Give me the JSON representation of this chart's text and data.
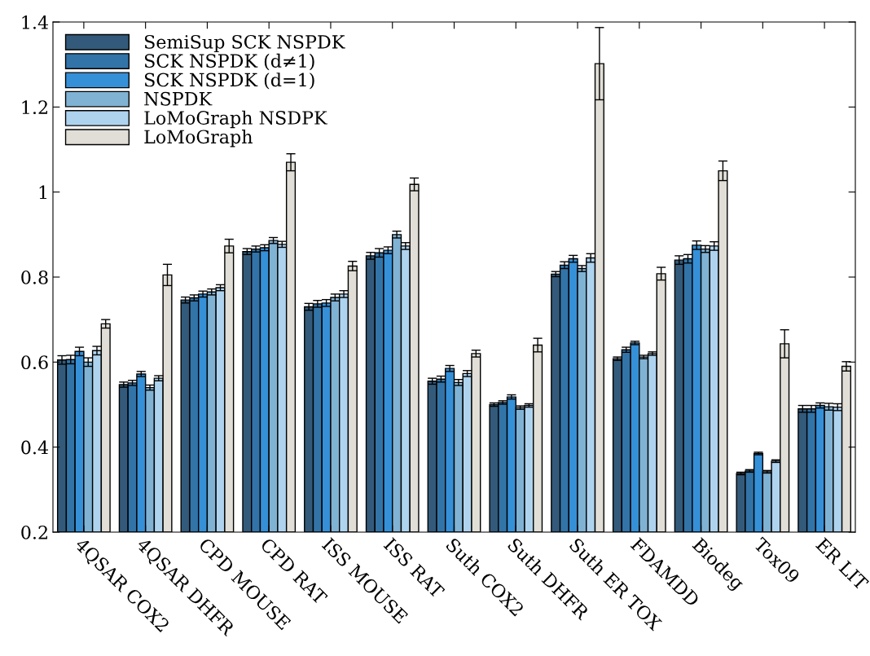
{
  "chart_data": {
    "type": "bar",
    "categories": [
      "4QSAR COX2",
      "4QSAR DHFR",
      "CPD MOUSE",
      "CPD RAT",
      "ISS MOUSE",
      "ISS RAT",
      "Suth COX2",
      "Suth DHFR",
      "Suth ER TOX",
      "FDAMDD",
      "Biodeg",
      "Tox09",
      "ER LIT"
    ],
    "series": [
      {
        "name": "SemiSup SCK NSPDK",
        "color": "#335a7a",
        "values": [
          0.605,
          0.547,
          0.746,
          0.86,
          0.73,
          0.85,
          0.555,
          0.5,
          0.807,
          0.608,
          0.84,
          0.338,
          0.49
        ],
        "errors": [
          0.01,
          0.006,
          0.007,
          0.007,
          0.008,
          0.008,
          0.007,
          0.004,
          0.006,
          0.004,
          0.01,
          0.003,
          0.008
        ]
      },
      {
        "name": "SCK NSPDK (d≠1)",
        "color": "#3274a8",
        "values": [
          0.606,
          0.551,
          0.751,
          0.866,
          0.737,
          0.857,
          0.56,
          0.505,
          0.828,
          0.629,
          0.843,
          0.344,
          0.49
        ],
        "errors": [
          0.01,
          0.006,
          0.007,
          0.007,
          0.008,
          0.01,
          0.007,
          0.004,
          0.008,
          0.006,
          0.01,
          0.003,
          0.008
        ]
      },
      {
        "name": "SCK NSPDK (d=1)",
        "color": "#3590d8",
        "values": [
          0.625,
          0.572,
          0.76,
          0.869,
          0.739,
          0.863,
          0.585,
          0.518,
          0.843,
          0.645,
          0.875,
          0.385,
          0.498
        ],
        "errors": [
          0.01,
          0.006,
          0.007,
          0.007,
          0.008,
          0.008,
          0.007,
          0.005,
          0.008,
          0.004,
          0.01,
          0.003,
          0.006
        ]
      },
      {
        "name": "NSPDK",
        "color": "#80b2d4",
        "values": [
          0.6,
          0.54,
          0.765,
          0.886,
          0.752,
          0.9,
          0.552,
          0.493,
          0.82,
          0.612,
          0.866,
          0.342,
          0.495
        ],
        "errors": [
          0.01,
          0.006,
          0.007,
          0.007,
          0.008,
          0.008,
          0.007,
          0.004,
          0.007,
          0.004,
          0.008,
          0.003,
          0.008
        ]
      },
      {
        "name": "LoMoGraph NSDPK",
        "color": "#aed3ef",
        "values": [
          0.627,
          0.562,
          0.775,
          0.877,
          0.76,
          0.873,
          0.573,
          0.498,
          0.845,
          0.62,
          0.873,
          0.367,
          0.494
        ],
        "errors": [
          0.01,
          0.006,
          0.007,
          0.007,
          0.008,
          0.008,
          0.007,
          0.004,
          0.01,
          0.004,
          0.01,
          0.003,
          0.008
        ]
      },
      {
        "name": "LoMoGraph",
        "color": "#e0ded6",
        "values": [
          0.69,
          0.805,
          0.873,
          1.07,
          0.826,
          1.018,
          0.62,
          0.64,
          1.302,
          0.808,
          1.05,
          0.643,
          0.59
        ],
        "errors": [
          0.01,
          0.025,
          0.016,
          0.02,
          0.011,
          0.015,
          0.008,
          0.016,
          0.085,
          0.015,
          0.023,
          0.033,
          0.011
        ]
      }
    ],
    "ylim": [
      0.2,
      1.4
    ],
    "yticks": [
      {
        "value": 0.2,
        "label": "0.2"
      },
      {
        "value": 0.4,
        "label": "0.4"
      },
      {
        "value": 0.6,
        "label": "0.6"
      },
      {
        "value": 0.8,
        "label": "0.8"
      },
      {
        "value": 1,
        "label": "1"
      },
      {
        "value": 1.2,
        "label": "1.2"
      },
      {
        "value": 1.4,
        "label": "1.4"
      }
    ],
    "grid": false,
    "legend": "top left"
  }
}
